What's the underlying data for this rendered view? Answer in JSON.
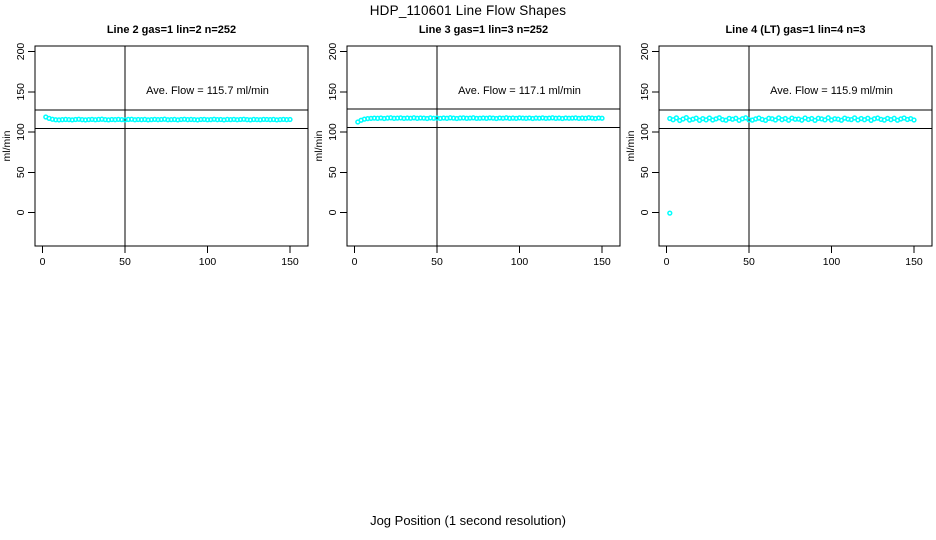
{
  "figure": {
    "title": "HDP_110601  Line Flow Shapes",
    "xlabel": "Jog Position (1 second resolution)",
    "ylabel": "ml/min"
  },
  "colors": {
    "points": "#00FFFF",
    "axis": "#000000",
    "background": "#FFFFFF"
  },
  "chart_data": {
    "type": "scatter",
    "title": "HDP_110601  Line Flow Shapes",
    "xlabel": "Jog Position (1 second resolution)",
    "ylabel": "ml/min",
    "x_ticks": [
      0,
      50,
      100,
      150
    ],
    "y_ticks": [
      0,
      50,
      100,
      150,
      200
    ],
    "xlim": [
      0,
      150
    ],
    "ylim": [
      0,
      200
    ],
    "legend": "none",
    "grid": "off",
    "plots": [
      {
        "title": "Line 2 gas=1 lin=2 n=252",
        "annotation": "Ave. Flow =  115.7  ml/min",
        "ave_flow": 115.7,
        "n": 252,
        "ref_line_upper": 127.3,
        "ref_line_lower": 104.1,
        "ref_line_vertical_x": 50,
        "annotation_pos": {
          "x": 100,
          "y": 147
        },
        "x_start": 2,
        "x_step": 2,
        "values": [
          118.6,
          116.9,
          115.8,
          115.2,
          115.0,
          115.3,
          115.6,
          115.4,
          115.1,
          115.5,
          115.8,
          115.3,
          115.0,
          115.4,
          115.7,
          115.2,
          115.6,
          115.9,
          115.4,
          115.1,
          115.5,
          115.3,
          115.7,
          115.4,
          115.0,
          115.6,
          115.8,
          115.2,
          115.5,
          115.3,
          115.6,
          115.1,
          115.4,
          115.7,
          115.3,
          115.5,
          115.9,
          115.2,
          115.4,
          115.6,
          115.1,
          115.5,
          115.8,
          115.3,
          115.6,
          115.4,
          115.0,
          115.5,
          115.7,
          115.2,
          115.4,
          115.8,
          115.3,
          115.5,
          115.1,
          115.6,
          115.4,
          115.7,
          115.2,
          115.5,
          115.8,
          115.3,
          115.1,
          115.6,
          115.4,
          115.2,
          115.7,
          115.5,
          115.3,
          115.6,
          115.1,
          115.4,
          115.7,
          115.3,
          115.5
        ],
        "extra_points": []
      },
      {
        "title": "Line 3 gas=1 lin=3 n=252",
        "annotation": "Ave. Flow =  117.1  ml/min",
        "ave_flow": 117.1,
        "n": 252,
        "ref_line_upper": 128.8,
        "ref_line_lower": 105.4,
        "ref_line_vertical_x": 50,
        "annotation_pos": {
          "x": 100,
          "y": 147
        },
        "x_start": 2,
        "x_step": 2,
        "values": [
          112.4,
          114.6,
          116.0,
          116.6,
          116.9,
          117.2,
          117.0,
          117.4,
          116.8,
          117.3,
          117.6,
          117.0,
          117.2,
          117.5,
          116.9,
          117.3,
          117.1,
          117.6,
          117.0,
          117.4,
          117.2,
          116.8,
          117.5,
          117.1,
          117.3,
          116.9,
          117.4,
          117.0,
          117.6,
          117.2,
          116.8,
          117.3,
          117.5,
          117.0,
          117.2,
          117.6,
          116.9,
          117.1,
          117.4,
          117.0,
          117.5,
          117.2,
          116.8,
          117.4,
          117.1,
          117.6,
          117.0,
          117.3,
          116.9,
          117.5,
          117.2,
          117.0,
          117.4,
          116.8,
          117.3,
          117.1,
          117.5,
          116.9,
          117.2,
          117.6,
          117.0,
          117.3,
          116.8,
          117.4,
          117.1,
          117.2,
          117.5,
          116.9,
          117.3,
          117.0,
          117.6,
          117.2,
          116.8,
          117.4,
          117.1
        ],
        "extra_points": []
      },
      {
        "title": "Line 4 (LT) gas=1 lin=4 n=3",
        "annotation": "Ave. Flow =  115.9  ml/min",
        "ave_flow": 115.9,
        "n": 3,
        "ref_line_upper": 127.5,
        "ref_line_lower": 104.3,
        "ref_line_vertical_x": 50,
        "annotation_pos": {
          "x": 100,
          "y": 147
        },
        "x_start": 2,
        "x_step": 2,
        "values": [
          116.8,
          115.2,
          117.5,
          114.3,
          116.1,
          117.8,
          114.8,
          115.9,
          117.2,
          114.5,
          116.6,
          115.1,
          117.4,
          114.9,
          116.3,
          117.7,
          115.4,
          114.6,
          116.9,
          115.8,
          117.1,
          114.4,
          116.5,
          117.6,
          115.0,
          114.8,
          116.2,
          117.3,
          115.6,
          114.5,
          117.0,
          116.4,
          114.9,
          117.5,
          115.3,
          116.7,
          114.6,
          117.2,
          115.8,
          116.1,
          114.7,
          117.4,
          115.5,
          116.8,
          114.4,
          117.0,
          116.3,
          115.1,
          117.6,
          114.8,
          116.5,
          115.9,
          114.6,
          117.2,
          116.0,
          115.4,
          117.5,
          114.9,
          116.7,
          115.2,
          117.1,
          114.5,
          116.4,
          117.3,
          115.7,
          114.8,
          116.9,
          115.3,
          117.0,
          114.6,
          116.2,
          117.4,
          115.5,
          116.6,
          114.9
        ],
        "extra_points": [
          {
            "x": 2,
            "y": -0.8
          }
        ]
      }
    ]
  }
}
